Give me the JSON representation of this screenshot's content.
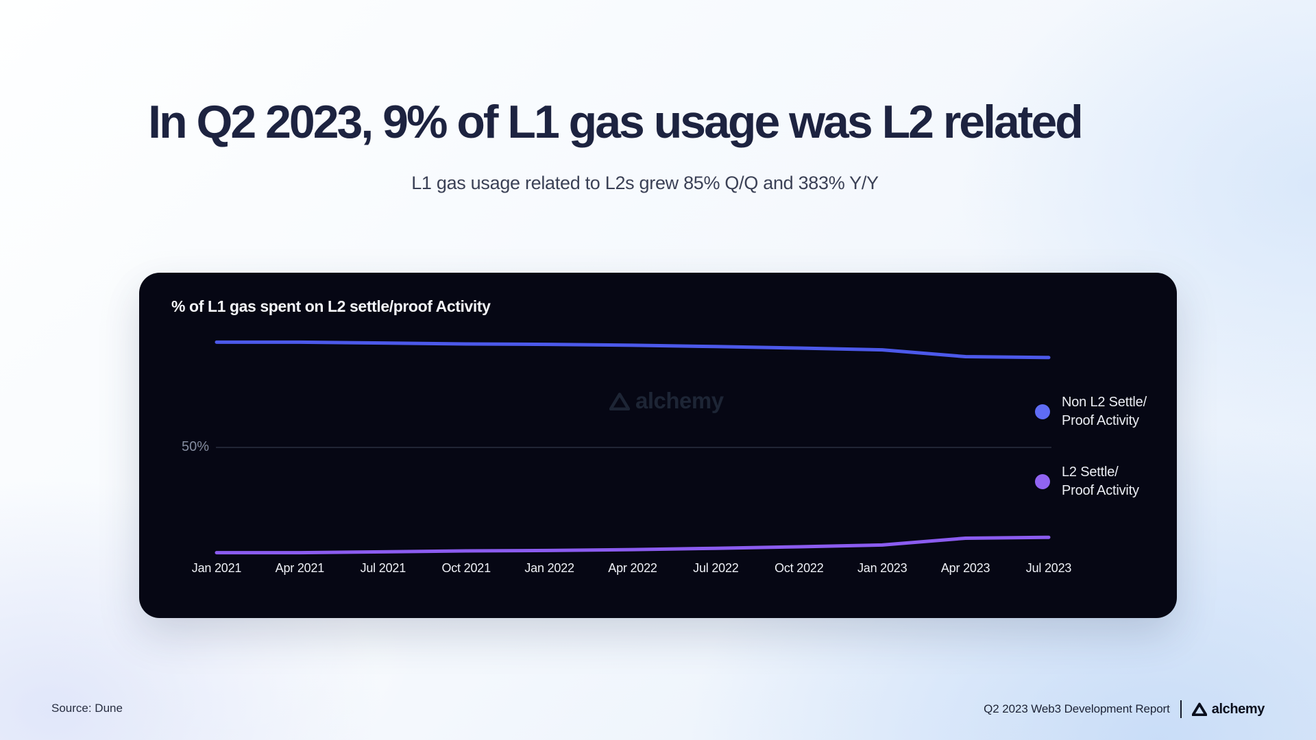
{
  "slide": {
    "title": "In Q2 2023, 9% of L1 gas usage was L2 related",
    "subtitle": "L1 gas usage related to L2s grew 85% Q/Q and 383% Y/Y"
  },
  "chart_card": {
    "title": "% of L1 gas spent on L2 settle/proof Activity",
    "watermark": "alchemy",
    "gridline_label": "50%",
    "legend": [
      {
        "label_line1": "Non L2 Settle/",
        "label_line2": "Proof Activity",
        "color": "#5f6cf5"
      },
      {
        "label_line1": "L2 Settle/",
        "label_line2": "Proof Activity",
        "color": "#9164f2"
      }
    ]
  },
  "chart_data": {
    "type": "line",
    "title": "% of L1 gas spent on L2 settle/proof Activity",
    "categories": [
      "Jan 2021",
      "Apr 2021",
      "Jul 2021",
      "Oct 2021",
      "Jan 2022",
      "Apr 2022",
      "Jul 2022",
      "Oct 2022",
      "Jan 2023",
      "Apr 2023",
      "Jul 2023"
    ],
    "series": [
      {
        "name": "Non L2 Settle/Proof Activity",
        "color": "#4c59ea",
        "values": [
          98,
          98,
          97.6,
          97.2,
          97,
          96.6,
          96,
          95.3,
          94.5,
          91.4,
          91
        ]
      },
      {
        "name": "L2 Settle/Proof Activity",
        "color": "#8b5cf0",
        "values": [
          2,
          2,
          2.4,
          2.8,
          3,
          3.4,
          4,
          4.7,
          5.5,
          8.6,
          9
        ]
      }
    ],
    "xlabel": "",
    "ylabel": "% of L1 gas",
    "ylim": [
      0,
      100
    ],
    "gridlines": [
      50
    ],
    "gridline_color": "#3c4356",
    "legend_position": "right",
    "grid": "single-horizontal-line"
  },
  "footer": {
    "source": "Source: Dune",
    "report": "Q2 2023 Web3 Development Report",
    "brand": "alchemy"
  },
  "colors": {
    "background_top_left": "#feffff",
    "background_bottom_right": "#cfe0f8",
    "card_background": "#060714",
    "title_text": "#1d2340",
    "subtitle_text": "#3b4156",
    "card_text": "#f5f6fa",
    "axis_label_text": "#eef0f6",
    "gridline_label_text": "#848c9f",
    "watermark_text": "#1f2737"
  }
}
